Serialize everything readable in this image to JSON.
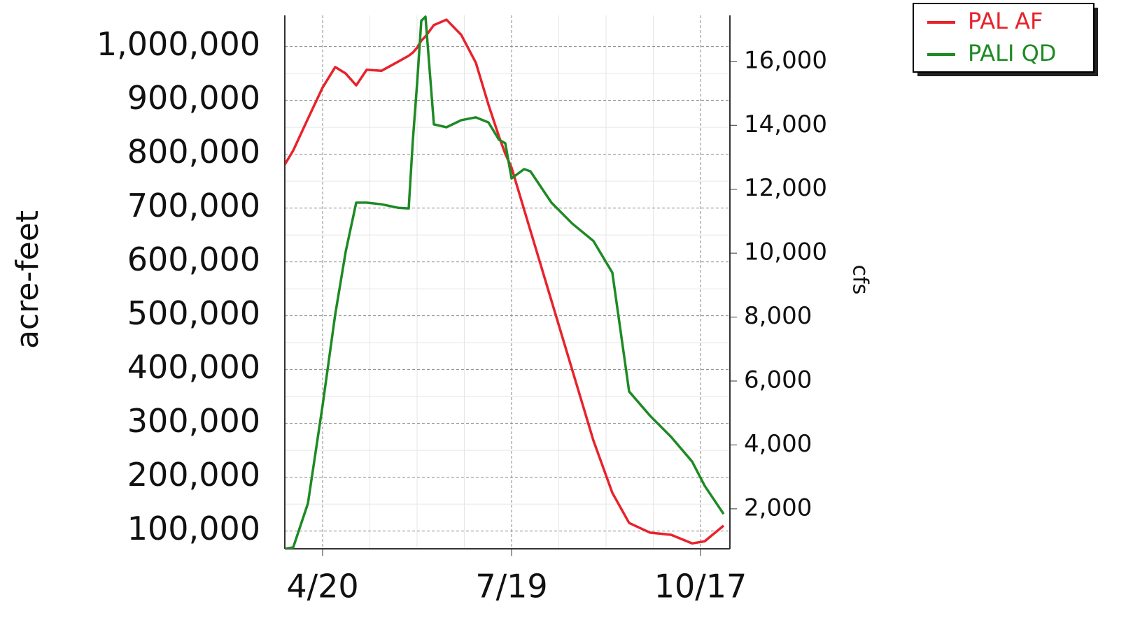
{
  "chart_data": {
    "type": "line",
    "x": [
      "4/2",
      "4/6",
      "4/13",
      "4/20",
      "4/26",
      "5/1",
      "5/6",
      "5/11",
      "5/18",
      "5/26",
      "5/31",
      "6/2",
      "6/4",
      "6/6",
      "6/8",
      "6/12",
      "6/18",
      "6/25",
      "7/2",
      "7/8",
      "7/13",
      "7/16",
      "7/19",
      "7/25",
      "7/28",
      "8/7",
      "8/17",
      "8/27",
      "9/5",
      "9/13",
      "9/23",
      "10/3",
      "10/13",
      "10/19",
      "10/28"
    ],
    "xlim": [
      "4/2",
      "10/31"
    ],
    "xticks": [
      "4/20",
      "7/19",
      "10/17"
    ],
    "ylabel": "acre-feet",
    "y2label": "cfs",
    "ylim": [
      67000,
      1058000
    ],
    "yticks": [
      {
        "value": 100000,
        "label": "100,000"
      },
      {
        "value": 200000,
        "label": "200,000"
      },
      {
        "value": 300000,
        "label": "300,000"
      },
      {
        "value": 400000,
        "label": "400,000"
      },
      {
        "value": 500000,
        "label": "500,000"
      },
      {
        "value": 600000,
        "label": "600,000"
      },
      {
        "value": 700000,
        "label": "700,000"
      },
      {
        "value": 800000,
        "label": "800,000"
      },
      {
        "value": 900000,
        "label": "900,000"
      },
      {
        "value": 1000000,
        "label": "1,000,000"
      }
    ],
    "y2lim": [
      750,
      17440
    ],
    "y2ticks": [
      {
        "value": 2000,
        "label": "2,000"
      },
      {
        "value": 4000,
        "label": "4,000"
      },
      {
        "value": 6000,
        "label": "6,000"
      },
      {
        "value": 8000,
        "label": "8,000"
      },
      {
        "value": 10000,
        "label": "10,000"
      },
      {
        "value": 12000,
        "label": "12,000"
      },
      {
        "value": 14000,
        "label": "14,000"
      },
      {
        "value": 16000,
        "label": "16,000"
      }
    ],
    "grid": true,
    "legend": "upper right",
    "series": [
      {
        "name": "PAL AF",
        "color": "#e8222b",
        "values": [
          781000,
          807000,
          866000,
          924000,
          962000,
          950000,
          928000,
          957000,
          955000,
          972000,
          983000,
          989000,
          998000,
          1011000,
          1019000,
          1040000,
          1050000,
          1022000,
          970000,
          892000,
          833000,
          801000,
          775000,
          697000,
          658000,
          528000,
          398000,
          268000,
          171000,
          115000,
          97000,
          93000,
          77000,
          81000,
          110000
        ]
      },
      {
        "name": "PALI QD",
        "color": "#1e8a24",
        "axis": "y2",
        "values": [
          750,
          794,
          2170,
          5240,
          8080,
          10050,
          11580,
          11580,
          11530,
          11420,
          11400,
          13550,
          15300,
          17270,
          17400,
          14030,
          13940,
          14160,
          14250,
          14090,
          13550,
          13440,
          12340,
          12630,
          12560,
          11580,
          10920,
          10380,
          9390,
          5670,
          4910,
          4250,
          3480,
          2720,
          1840
        ]
      }
    ]
  }
}
